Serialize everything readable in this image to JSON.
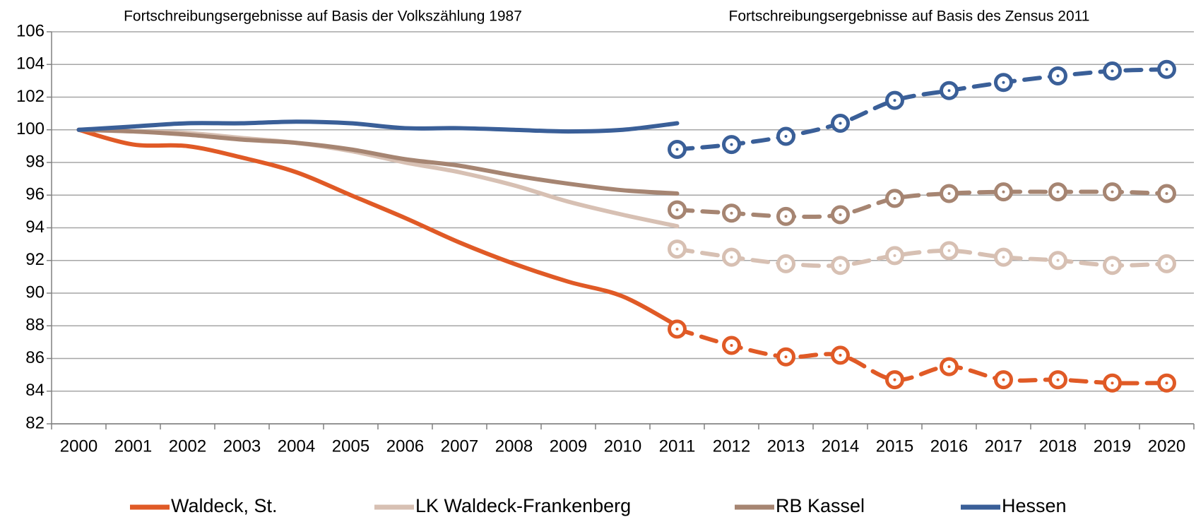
{
  "chart_data": {
    "type": "line",
    "annotations": [
      "Fortschreibungsergebnisse auf Basis der Volkszählung 1987",
      "Fortschreibungsergebnisse auf Basis des Zensus 2011"
    ],
    "categories": [
      "2000",
      "2001",
      "2002",
      "2003",
      "2004",
      "2005",
      "2006",
      "2007",
      "2008",
      "2009",
      "2010",
      "2011",
      "2012",
      "2013",
      "2014",
      "2015",
      "2016",
      "2017",
      "2018",
      "2019",
      "2020"
    ],
    "ylim": [
      82,
      106
    ],
    "yticks": [
      82,
      84,
      86,
      88,
      90,
      92,
      94,
      96,
      98,
      100,
      102,
      104,
      106
    ],
    "grid": true,
    "legend": "bottom",
    "series": [
      {
        "name": "Waldeck, St.",
        "color": "#e05a26",
        "values": [
          100,
          99.1,
          99.0,
          98.3,
          97.4,
          96.0,
          94.6,
          93.1,
          91.8,
          90.7,
          89.8,
          88.0,
          null,
          null,
          null,
          null,
          null,
          null,
          null,
          null,
          null
        ],
        "census_values": [
          null,
          null,
          null,
          null,
          null,
          null,
          null,
          null,
          null,
          null,
          null,
          87.8,
          86.8,
          86.1,
          86.2,
          84.7,
          85.5,
          84.7,
          84.7,
          84.5,
          84.5
        ]
      },
      {
        "name": "LK Waldeck-Frankenberg",
        "color": "#d7c0b3",
        "values": [
          100,
          99.9,
          99.8,
          99.5,
          99.2,
          98.7,
          98.0,
          97.4,
          96.6,
          95.6,
          94.8,
          94.1,
          null,
          null,
          null,
          null,
          null,
          null,
          null,
          null,
          null
        ],
        "census_values": [
          null,
          null,
          null,
          null,
          null,
          null,
          null,
          null,
          null,
          null,
          null,
          92.7,
          92.2,
          91.8,
          91.7,
          92.3,
          92.6,
          92.2,
          92.0,
          91.7,
          91.8
        ]
      },
      {
        "name": "RB Kassel",
        "color": "#a68572",
        "values": [
          100,
          99.9,
          99.7,
          99.4,
          99.2,
          98.8,
          98.2,
          97.8,
          97.2,
          96.7,
          96.3,
          96.1,
          null,
          null,
          null,
          null,
          null,
          null,
          null,
          null,
          null
        ],
        "census_values": [
          null,
          null,
          null,
          null,
          null,
          null,
          null,
          null,
          null,
          null,
          null,
          95.1,
          94.9,
          94.7,
          94.8,
          95.8,
          96.1,
          96.2,
          96.2,
          96.2,
          96.1
        ]
      },
      {
        "name": "Hessen",
        "color": "#3a5f98",
        "values": [
          100,
          100.2,
          100.4,
          100.4,
          100.5,
          100.4,
          100.1,
          100.1,
          100.0,
          99.9,
          100.0,
          100.4,
          null,
          null,
          null,
          null,
          null,
          null,
          null,
          null,
          null
        ],
        "census_values": [
          null,
          null,
          null,
          null,
          null,
          null,
          null,
          null,
          null,
          null,
          null,
          98.8,
          99.1,
          99.6,
          100.4,
          101.8,
          102.4,
          102.9,
          103.3,
          103.6,
          103.7
        ]
      }
    ]
  }
}
